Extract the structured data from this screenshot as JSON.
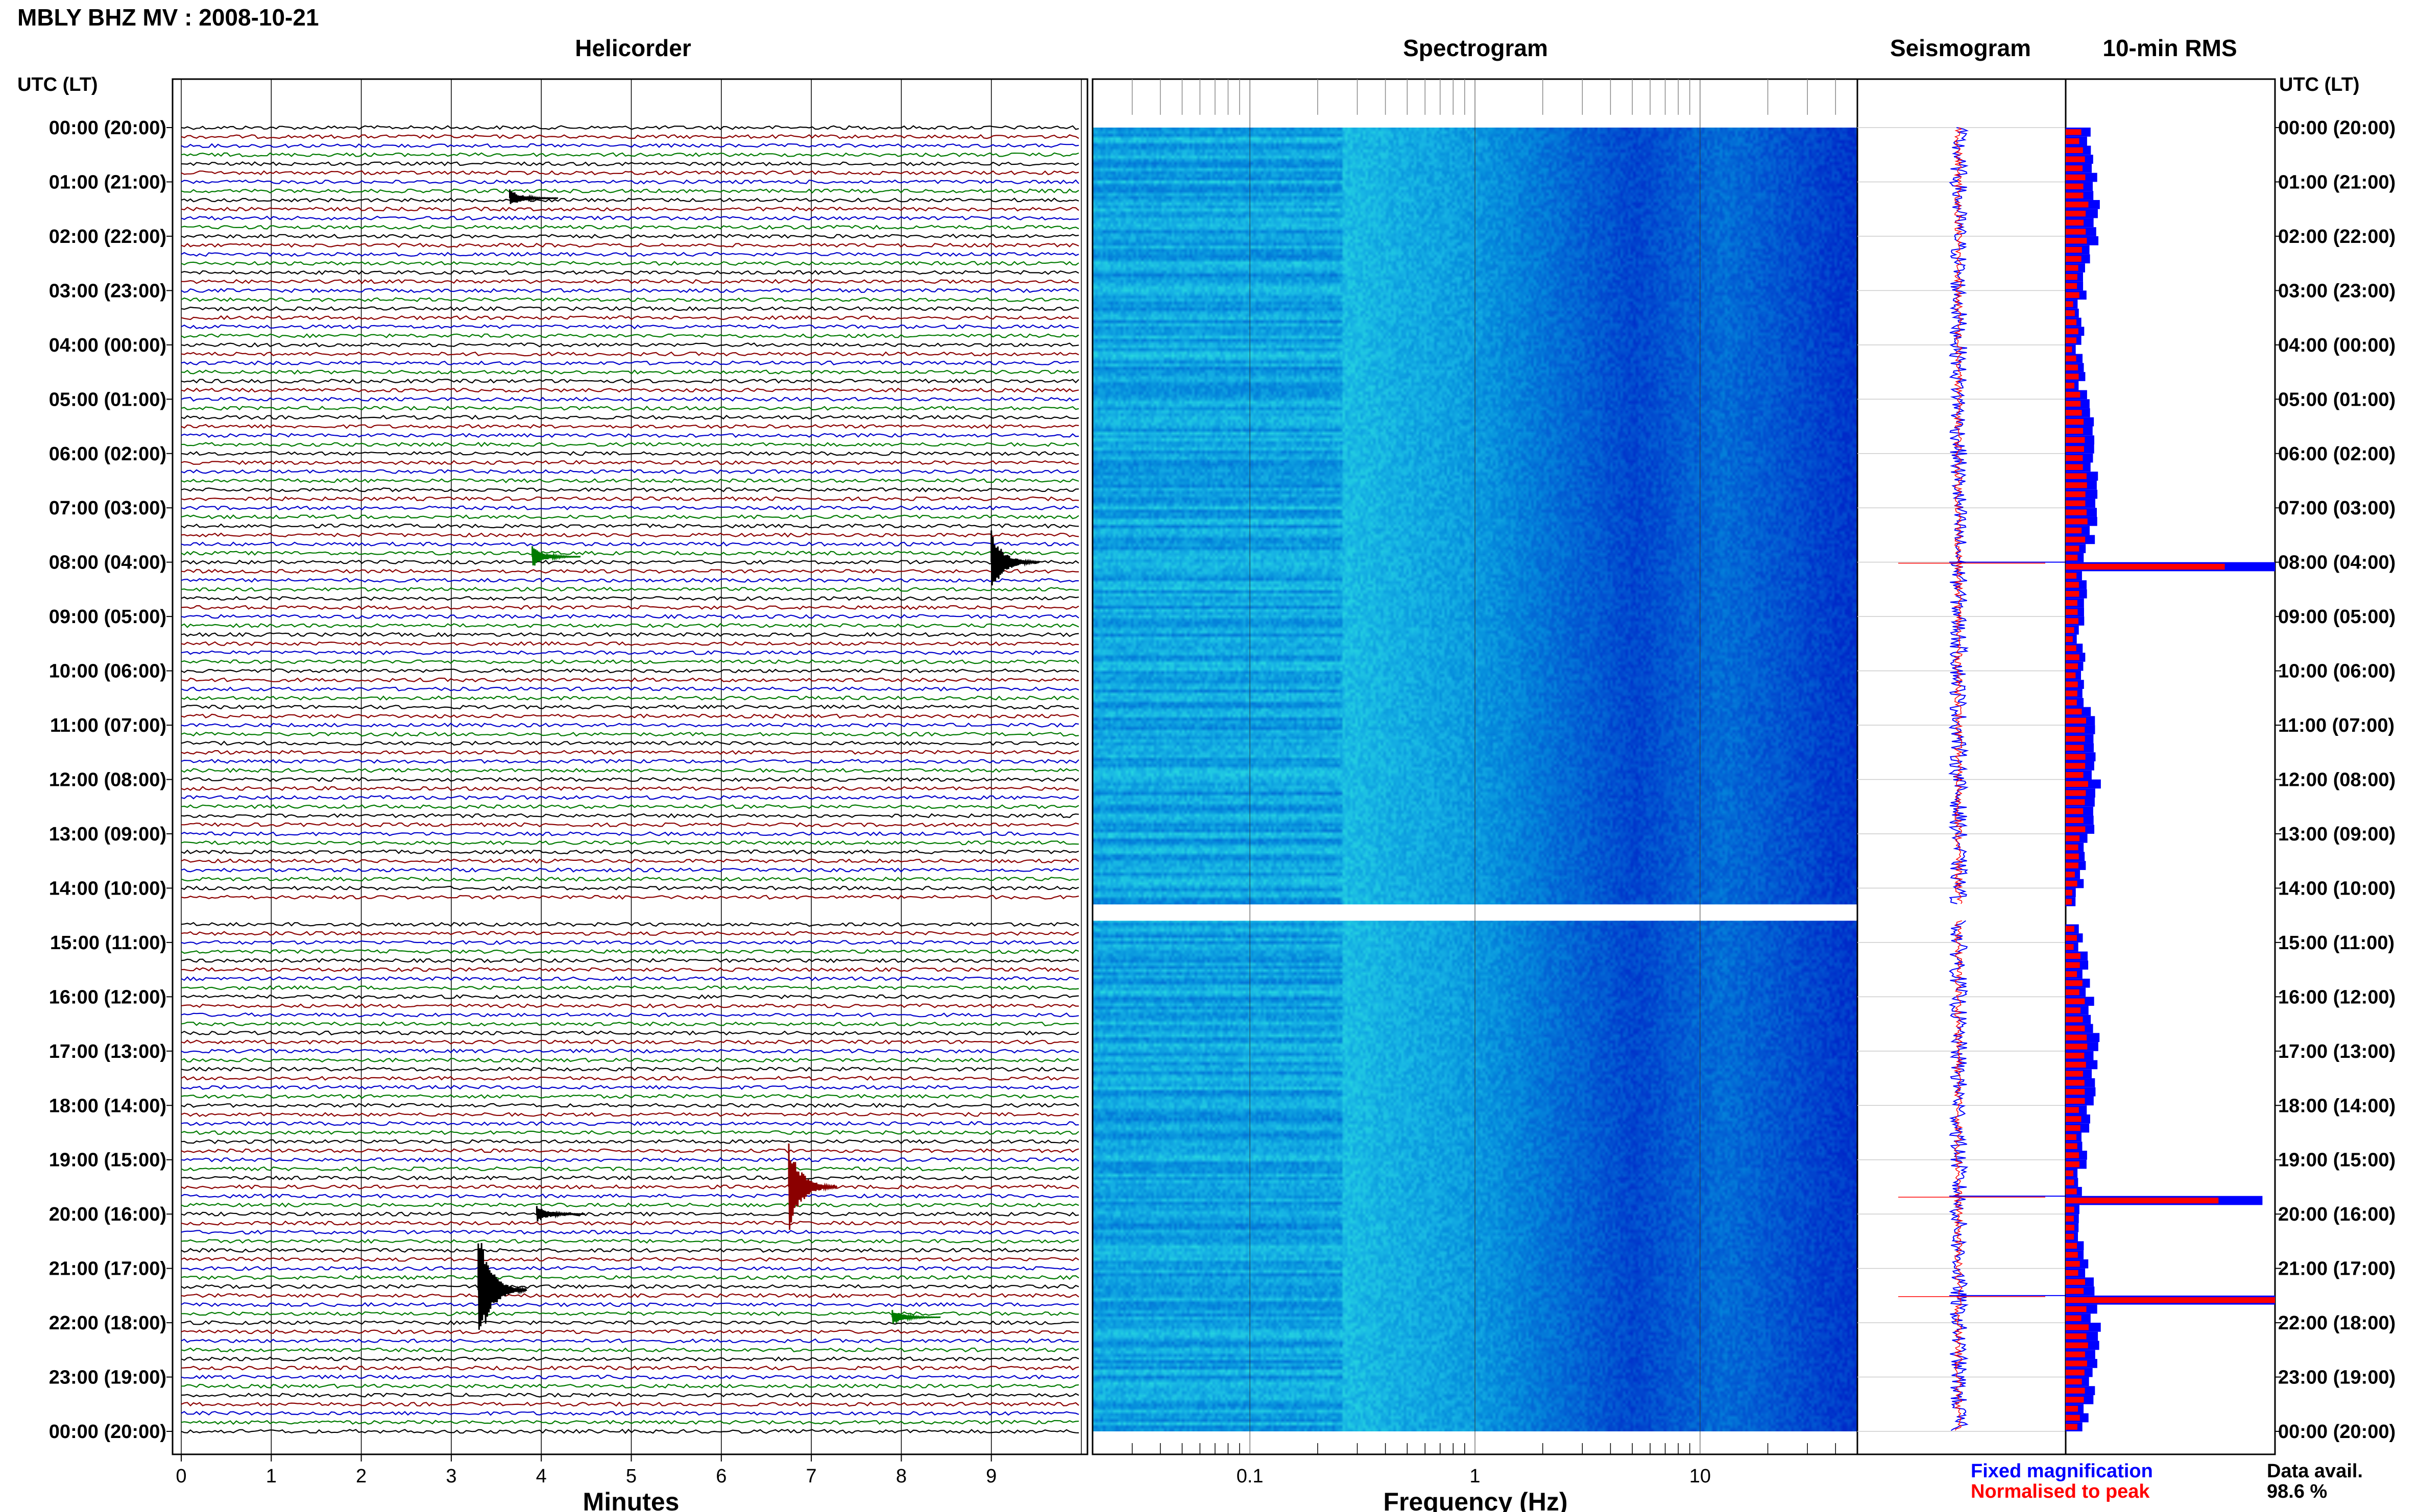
{
  "header": {
    "station_title": "MBLY BHZ MV : 2008-10-21",
    "left_axis_label": "UTC (LT)",
    "right_axis_label": "UTC (LT)"
  },
  "panels": {
    "helicorder": "Helicorder",
    "spectrogram": "Spectrogram",
    "seismogram": "Seismogram",
    "rms": "10-min RMS"
  },
  "footer": {
    "x_label_helicorder": "Minutes",
    "x_label_spectrogram": "Frequency (Hz)",
    "legend_fixed": "Fixed magnification",
    "legend_normalised": "Normalised to peak",
    "data_avail_label": "Data avail.",
    "data_avail_value": "98.6 %"
  },
  "colors": {
    "trace_cycle": [
      "#000000",
      "#8b0000",
      "#0000cc",
      "#007a00"
    ],
    "fixed_magnification": "#0000ff",
    "normalised_to_peak": "#ff0000",
    "spectrogram_low": "#0000cc",
    "spectrogram_high": "#40ffb0"
  },
  "chart_data": [
    {
      "type": "line",
      "name": "helicorder",
      "title": "Helicorder",
      "xlabel": "Minutes",
      "x_ticks": [
        "0",
        "1",
        "2",
        "3",
        "4",
        "5",
        "6",
        "7",
        "8",
        "9"
      ],
      "xlim": [
        0,
        10
      ],
      "hour_labels": [
        "00:00 (20:00)",
        "01:00 (21:00)",
        "02:00 (22:00)",
        "03:00 (23:00)",
        "04:00 (00:00)",
        "05:00 (01:00)",
        "06:00 (02:00)",
        "07:00 (03:00)",
        "08:00 (04:00)",
        "09:00 (05:00)",
        "10:00 (06:00)",
        "11:00 (07:00)",
        "12:00 (08:00)",
        "13:00 (09:00)",
        "14:00 (10:00)",
        "15:00 (11:00)",
        "16:00 (12:00)",
        "17:00 (13:00)",
        "18:00 (14:00)",
        "19:00 (15:00)",
        "20:00 (16:00)",
        "21:00 (17:00)",
        "22:00 (18:00)",
        "23:00 (19:00)",
        "00:00 (20:00)"
      ],
      "traces_per_hour": 6,
      "data_gap_hours": [
        14.3,
        14.6
      ],
      "events": [
        {
          "hour": 8.0,
          "minute": 9.0,
          "amplitude": 3.0
        },
        {
          "hour": 7.9,
          "minute": 3.9,
          "amplitude": 1.0
        },
        {
          "hour": 19.5,
          "minute": 6.75,
          "amplitude": 4.5
        },
        {
          "hour": 21.4,
          "minute": 3.3,
          "amplitude": 6.0
        },
        {
          "hour": 20.0,
          "minute": 3.95,
          "amplitude": 0.8
        },
        {
          "hour": 21.9,
          "minute": 7.9,
          "amplitude": 0.7
        },
        {
          "hour": 1.3,
          "minute": 3.65,
          "amplitude": 0.8
        }
      ]
    },
    {
      "type": "heatmap",
      "name": "spectrogram",
      "title": "Spectrogram",
      "xlabel": "Frequency (Hz)",
      "x_scale": "log",
      "xlim": [
        0.02,
        50
      ],
      "x_ticks": [
        "0.1",
        "1",
        "10"
      ],
      "data_gap_hours": [
        14.3,
        14.6
      ]
    },
    {
      "type": "line",
      "name": "seismogram",
      "title": "Seismogram",
      "series": [
        {
          "name": "Fixed magnification"
        },
        {
          "name": "Normalised to peak"
        }
      ]
    },
    {
      "type": "bar",
      "name": "rms",
      "title": "10-min RMS",
      "orientation": "horizontal",
      "data_gap_hours": [
        14.3,
        14.6
      ],
      "peaks": [
        {
          "hour": 8.0,
          "fixed": 1.0,
          "normalised": 0.76
        },
        {
          "hour": 19.67,
          "fixed": 0.94,
          "normalised": 0.73
        },
        {
          "hour": 21.5,
          "fixed": 1.0,
          "normalised": 1.0
        }
      ]
    }
  ]
}
